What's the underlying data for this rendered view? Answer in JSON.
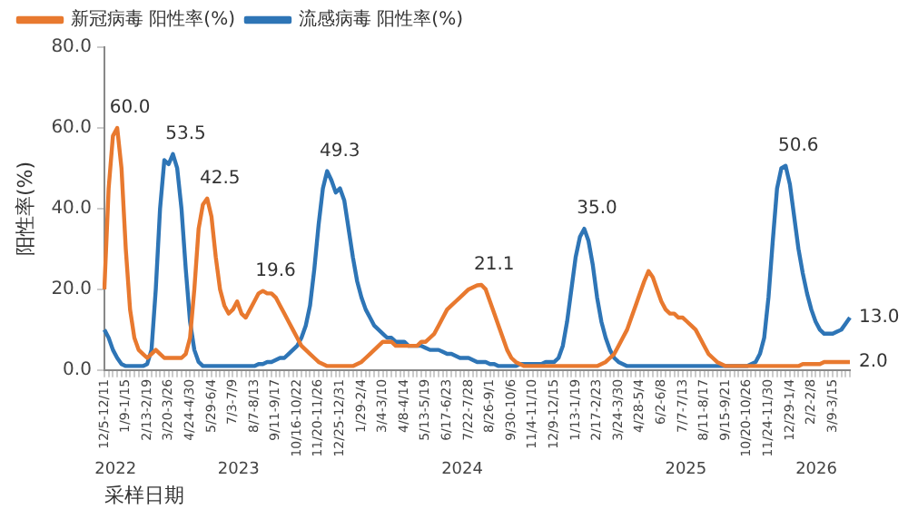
{
  "chart_data": {
    "type": "line",
    "ylabel": "阳性率(%)",
    "xlabel": "采样日期",
    "legend": "top",
    "marker": "none",
    "grid": false,
    "ylim": [
      0,
      80
    ],
    "yticks": [
      {
        "value": 0,
        "label": "0.0"
      },
      {
        "value": 20,
        "label": "20.0"
      },
      {
        "value": 40,
        "label": "40.0"
      },
      {
        "value": 60,
        "label": "60.0"
      },
      {
        "value": 80,
        "label": "80.0"
      }
    ],
    "categories": [
      "12/5-12/11",
      null,
      null,
      null,
      null,
      "1/9-1/15",
      null,
      null,
      null,
      null,
      "2/13-2/19",
      null,
      null,
      null,
      null,
      "3/20-3/26",
      null,
      null,
      null,
      null,
      "4/24-4/30",
      null,
      null,
      null,
      null,
      "5/29-6/4",
      null,
      null,
      null,
      null,
      "7/3-7/9",
      null,
      null,
      null,
      null,
      "8/7-8/13",
      null,
      null,
      null,
      null,
      "9/11-9/17",
      null,
      null,
      null,
      null,
      "10/16-10/22",
      null,
      null,
      null,
      null,
      "11/20-11/26",
      null,
      null,
      null,
      null,
      "12/25-12/31",
      null,
      null,
      null,
      null,
      "1/29-2/4",
      null,
      null,
      null,
      null,
      "3/4-3/10",
      null,
      null,
      null,
      null,
      "4/8-4/14",
      null,
      null,
      null,
      null,
      "5/13-5/19",
      null,
      null,
      null,
      null,
      "6/17-6/23",
      null,
      null,
      null,
      null,
      "7/22-7/28",
      null,
      null,
      null,
      null,
      "8/26-9/1",
      null,
      null,
      null,
      null,
      "9/30-10/6",
      null,
      null,
      null,
      null,
      "11/4-11/10",
      null,
      null,
      null,
      null,
      "12/9-12/15",
      null,
      null,
      null,
      null,
      "1/13-1/19",
      null,
      null,
      null,
      null,
      "2/17-2/23",
      null,
      null,
      null,
      null,
      "3/24-3/30",
      null,
      null,
      null,
      null,
      "4/28-5/4",
      null,
      null,
      null,
      null,
      "6/2-6/8",
      null,
      null,
      null,
      null,
      "7/7-7/13",
      null,
      null,
      null,
      null,
      "8/11-8/17",
      null,
      null,
      null,
      null,
      "9/15-9/21",
      null,
      null,
      null,
      null,
      "10/20-10/26",
      null,
      null,
      null,
      null,
      "11/24-11/30",
      null,
      null,
      null,
      null,
      "12/29-1/4",
      null,
      null,
      null,
      null,
      "2/2-2/8",
      null,
      null,
      null,
      null,
      "3/9-3/15",
      null,
      null,
      null,
      null
    ],
    "annotations": [
      "2022",
      "2023",
      "2024",
      "2025",
      "2026"
    ],
    "series": [
      {
        "name": "新冠病毒 阳性率(%)",
        "color": "#e8792f",
        "values": [
          20,
          45,
          58,
          60,
          50,
          30,
          15,
          8,
          5,
          4,
          3,
          4,
          5,
          4,
          3,
          3,
          3,
          3,
          3,
          4,
          8,
          20,
          35,
          41,
          42.5,
          38,
          28,
          20,
          16,
          14,
          15,
          17,
          14,
          13,
          15,
          17,
          19,
          19.6,
          19,
          19,
          18,
          16,
          14,
          12,
          10,
          8,
          6,
          5,
          4,
          3,
          2,
          1.5,
          1,
          1,
          1,
          1,
          1,
          1,
          1,
          1.5,
          2,
          3,
          4,
          5,
          6,
          7,
          7,
          7,
          6,
          6,
          6,
          6,
          6,
          6,
          7,
          7,
          8,
          9,
          11,
          13,
          15,
          16,
          17,
          18,
          19,
          20,
          20.5,
          21,
          21.1,
          20,
          17,
          14,
          11,
          8,
          5,
          3,
          2,
          1.5,
          1,
          1,
          1,
          1,
          1,
          1,
          1,
          1,
          1,
          1,
          1,
          1,
          1,
          1,
          1,
          1,
          1,
          1,
          1.5,
          2,
          3,
          4,
          6,
          8,
          10,
          13,
          16,
          19,
          22,
          24.5,
          23,
          20,
          17,
          15,
          14,
          14,
          13,
          13,
          12,
          11,
          10,
          8,
          6,
          4,
          3,
          2,
          1.5,
          1,
          1,
          1,
          1,
          1,
          1,
          1,
          1,
          1,
          1,
          1,
          1,
          1,
          1,
          1,
          1,
          1,
          1,
          1.5,
          1.5,
          1.5,
          1.5,
          1.5,
          2,
          2,
          2,
          2,
          2,
          2,
          2
        ],
        "value_labels": [
          null,
          null,
          null,
          "60.0",
          null,
          null,
          null,
          null,
          null,
          null,
          null,
          null,
          null,
          null,
          null,
          null,
          null,
          null,
          null,
          null,
          null,
          null,
          null,
          null,
          "42.5",
          null,
          null,
          null,
          null,
          null,
          null,
          null,
          null,
          null,
          null,
          null,
          null,
          "19.6",
          null,
          null,
          null,
          null,
          null,
          null,
          null,
          null,
          null,
          null,
          null,
          null,
          null,
          null,
          null,
          null,
          null,
          null,
          null,
          null,
          null,
          null,
          null,
          null,
          null,
          null,
          null,
          null,
          null,
          null,
          null,
          null,
          null,
          null,
          null,
          null,
          null,
          null,
          null,
          null,
          null,
          null,
          null,
          null,
          null,
          null,
          null,
          null,
          null,
          null,
          "21.1",
          null,
          null,
          null,
          null,
          null,
          null,
          null,
          null,
          null,
          null,
          null,
          null,
          null,
          null,
          null,
          null,
          null,
          null,
          null,
          null,
          null,
          null,
          null,
          null,
          null,
          null,
          null,
          null,
          null,
          null,
          null,
          null,
          null,
          null,
          null,
          null,
          null,
          null,
          null,
          null,
          null,
          null,
          null,
          null,
          null,
          null,
          null,
          null,
          null,
          null,
          null,
          null,
          null,
          null,
          null,
          null,
          null,
          null,
          null,
          null,
          null,
          null,
          null,
          null,
          null,
          null,
          null,
          null,
          null,
          null,
          null,
          null,
          null,
          null,
          null,
          null,
          null,
          null,
          null,
          null,
          null,
          null,
          null,
          null,
          null,
          "2.0"
        ]
      },
      {
        "name": "流感病毒 阳性率(%)",
        "color": "#2e75b6",
        "values": [
          10,
          8,
          5,
          3,
          1.5,
          1,
          1,
          1,
          1,
          1,
          1.5,
          5,
          20,
          40,
          52,
          51,
          53.5,
          50,
          40,
          25,
          12,
          5,
          2,
          1,
          1,
          1,
          1,
          1,
          1,
          1,
          1,
          1,
          1,
          1,
          1,
          1,
          1.5,
          1.5,
          2,
          2,
          2.5,
          3,
          3,
          4,
          5,
          6,
          8,
          11,
          16,
          25,
          36,
          45,
          49.3,
          47,
          44,
          45,
          42,
          35,
          28,
          22,
          18,
          15,
          13,
          11,
          10,
          9,
          8,
          8,
          7,
          7,
          7,
          6,
          6,
          6,
          6,
          5.5,
          5,
          5,
          5,
          4.5,
          4,
          4,
          3.5,
          3,
          3,
          3,
          2.5,
          2,
          2,
          2,
          1.5,
          1.5,
          1,
          1,
          1,
          1,
          1,
          1.5,
          1.5,
          1.5,
          1.5,
          1.5,
          1.5,
          2,
          2,
          2,
          3,
          6,
          12,
          20,
          28,
          33,
          35,
          32,
          26,
          18,
          12,
          8,
          5,
          3,
          2,
          1.5,
          1,
          1,
          1,
          1,
          1,
          1,
          1,
          1,
          1,
          1,
          1,
          1,
          1,
          1,
          1,
          1,
          1,
          1,
          1,
          1,
          1,
          1,
          1,
          1,
          1,
          1,
          1,
          1,
          1,
          1.5,
          2,
          4,
          8,
          18,
          32,
          45,
          50,
          50.6,
          46,
          38,
          30,
          24,
          19,
          15,
          12,
          10,
          9,
          9,
          9,
          9.5,
          10,
          11.5,
          13
        ],
        "value_labels": [
          null,
          null,
          null,
          null,
          null,
          null,
          null,
          null,
          null,
          null,
          null,
          null,
          null,
          null,
          null,
          null,
          "53.5",
          null,
          null,
          null,
          null,
          null,
          null,
          null,
          null,
          null,
          null,
          null,
          null,
          null,
          null,
          null,
          null,
          null,
          null,
          null,
          null,
          null,
          null,
          null,
          null,
          null,
          null,
          null,
          null,
          null,
          null,
          null,
          null,
          null,
          null,
          null,
          "49.3",
          null,
          null,
          null,
          null,
          null,
          null,
          null,
          null,
          null,
          null,
          null,
          null,
          null,
          null,
          null,
          null,
          null,
          null,
          null,
          null,
          null,
          null,
          null,
          null,
          null,
          null,
          null,
          null,
          null,
          null,
          null,
          null,
          null,
          null,
          null,
          null,
          null,
          null,
          null,
          null,
          null,
          null,
          null,
          null,
          null,
          null,
          null,
          null,
          null,
          null,
          null,
          null,
          null,
          null,
          null,
          null,
          null,
          null,
          null,
          "35.0",
          null,
          null,
          null,
          null,
          null,
          null,
          null,
          null,
          null,
          null,
          null,
          null,
          null,
          null,
          null,
          null,
          null,
          null,
          null,
          null,
          null,
          null,
          null,
          null,
          null,
          null,
          null,
          null,
          null,
          null,
          null,
          null,
          null,
          null,
          null,
          null,
          null,
          null,
          null,
          null,
          null,
          null,
          null,
          null,
          null,
          null,
          "50.6",
          null,
          null,
          null,
          null,
          null,
          null,
          null,
          null,
          null,
          null,
          null,
          null,
          null,
          null,
          "13.0"
        ]
      }
    ]
  }
}
